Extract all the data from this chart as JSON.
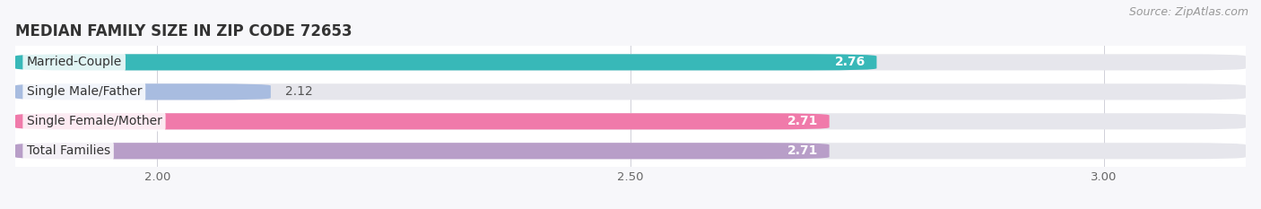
{
  "title": "MEDIAN FAMILY SIZE IN ZIP CODE 72653",
  "source": "Source: ZipAtlas.com",
  "categories": [
    "Married-Couple",
    "Single Male/Father",
    "Single Female/Mother",
    "Total Families"
  ],
  "values": [
    2.76,
    2.12,
    2.71,
    2.71
  ],
  "bar_colors": [
    "#38b8b8",
    "#a8bce0",
    "#f07aaa",
    "#b89ec8"
  ],
  "bar_bg_color": "#e6e6ec",
  "label_bg_color": "#ffffff",
  "label_colors": [
    "#ffffff",
    "#666666",
    "#ffffff",
    "#ffffff"
  ],
  "xlim_min": 1.85,
  "xlim_max": 3.15,
  "xticks": [
    2.0,
    2.5,
    3.0
  ],
  "background_color": "#f7f7fa",
  "plot_bg_color": "#ffffff",
  "bar_height": 0.55,
  "value_fontsize": 10,
  "label_fontsize": 10,
  "title_fontsize": 12,
  "source_fontsize": 9
}
